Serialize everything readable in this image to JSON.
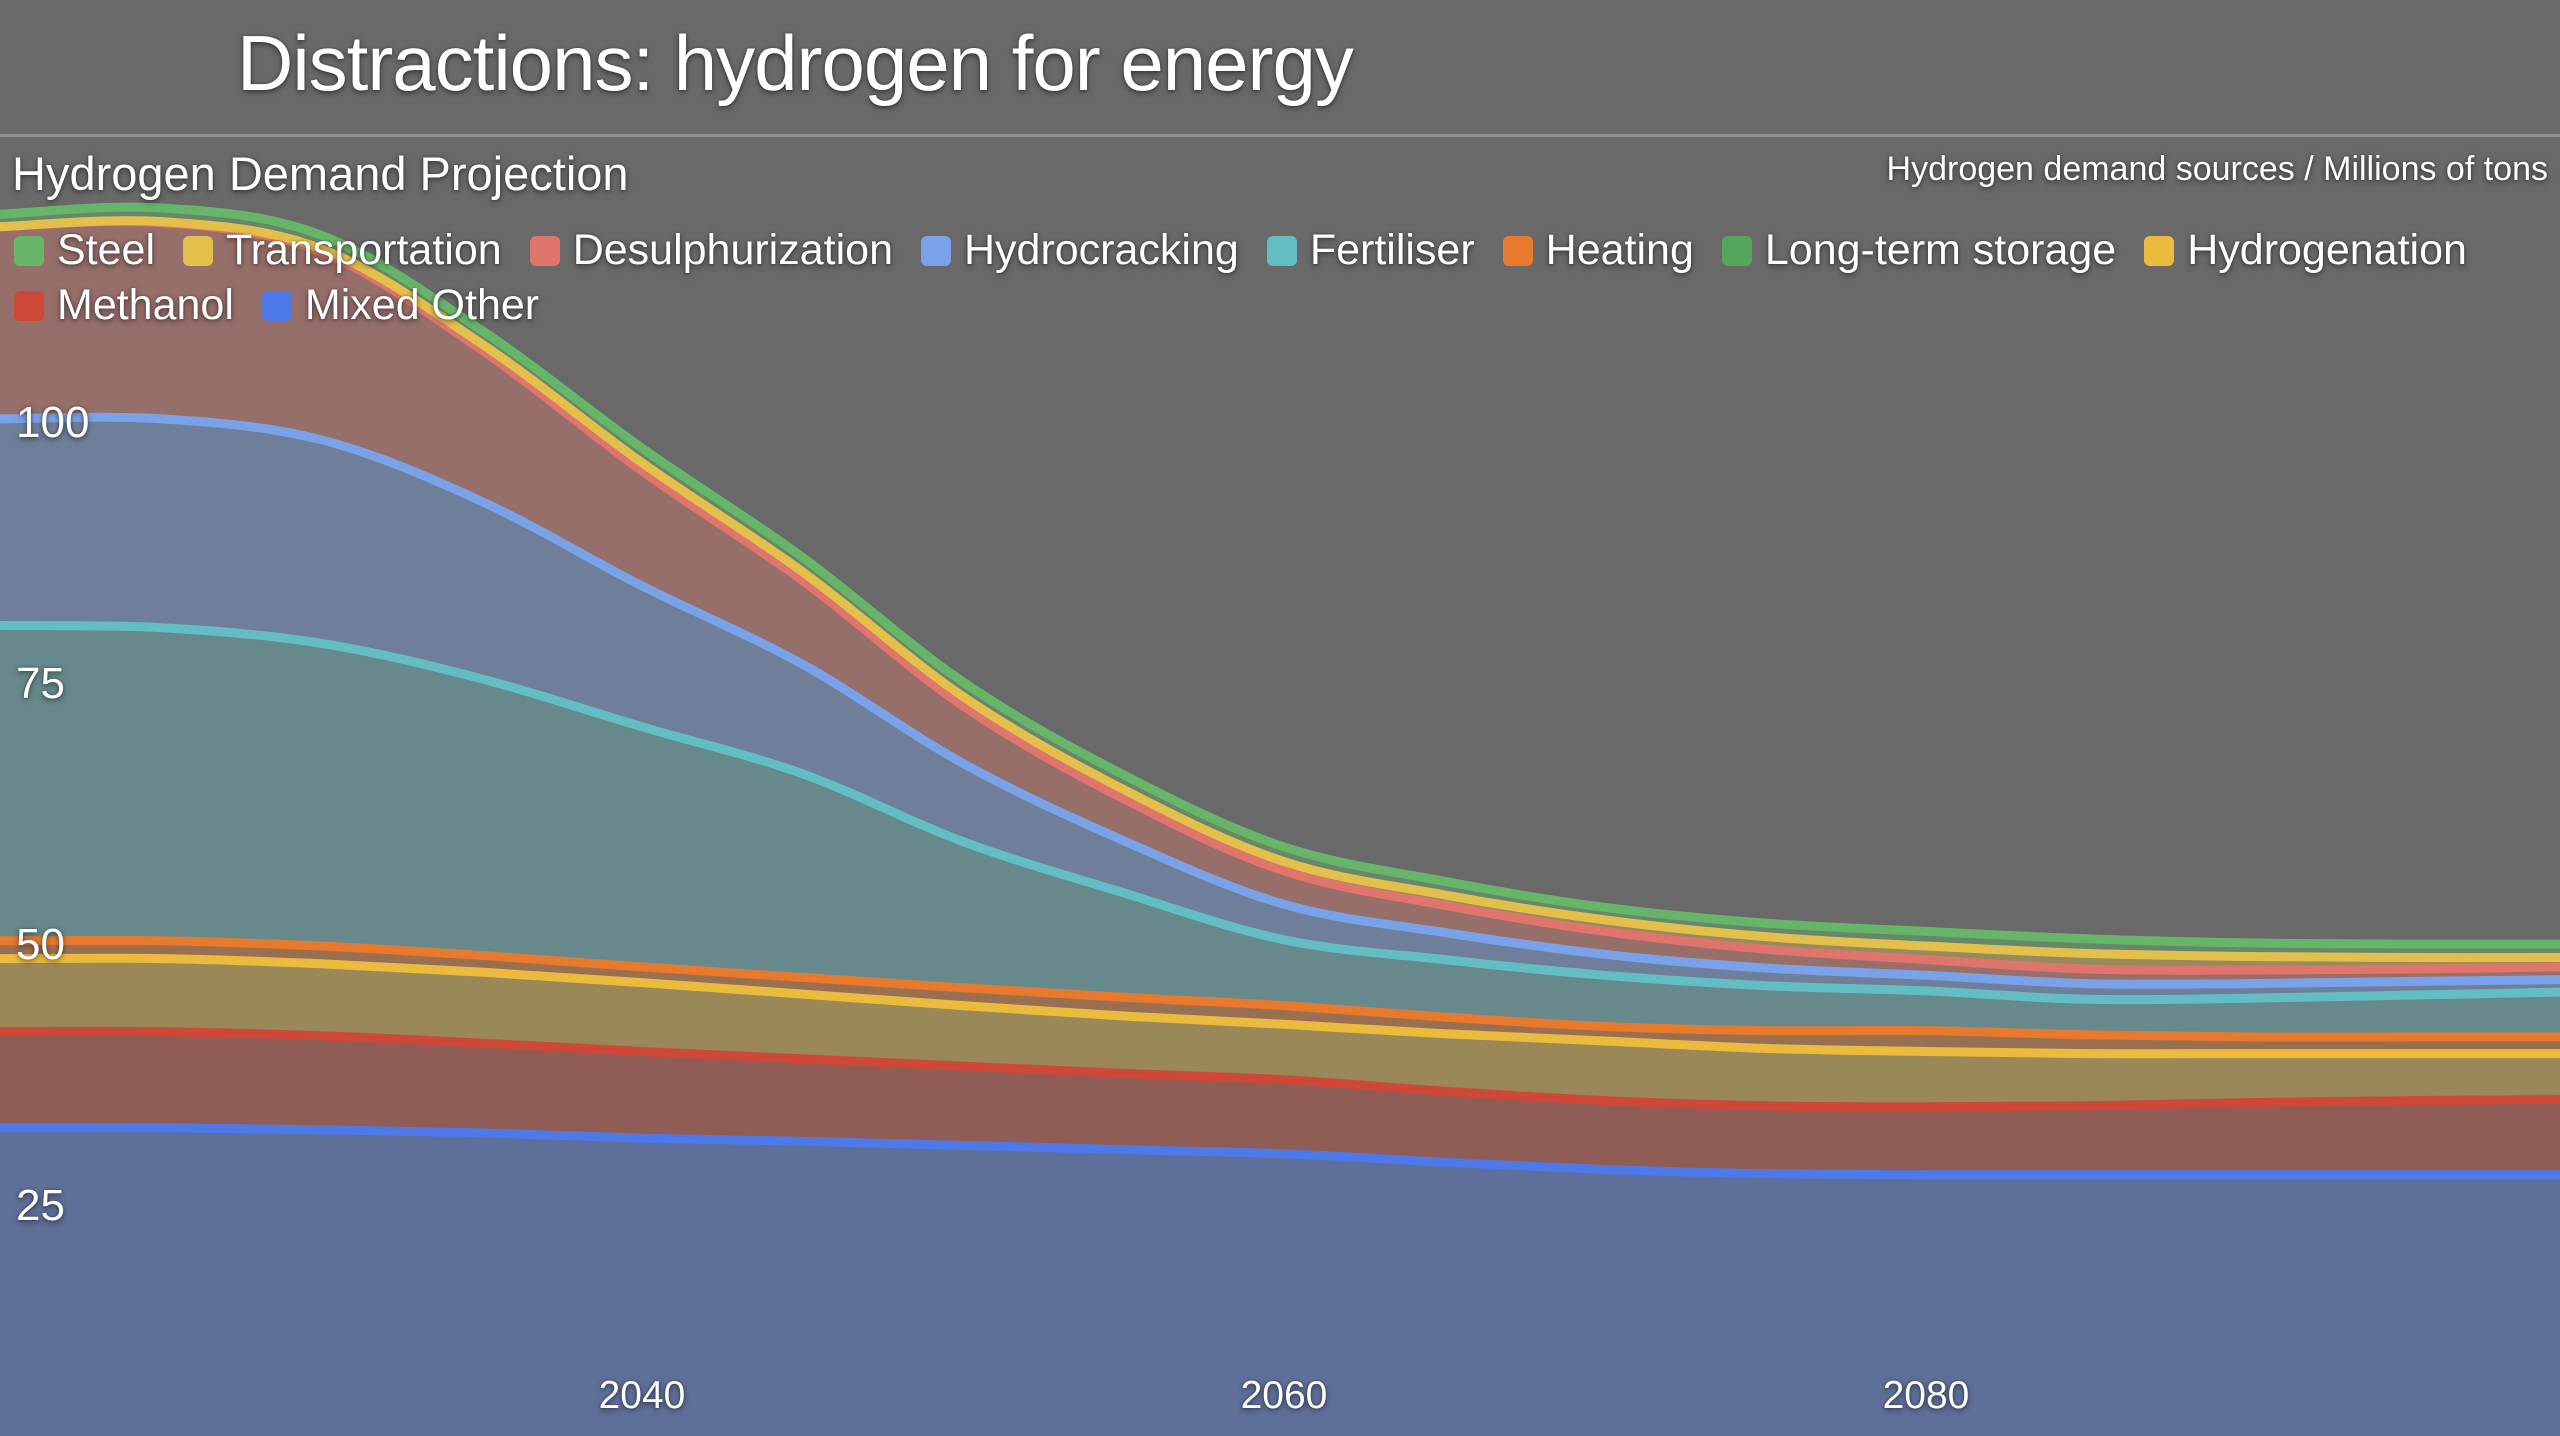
{
  "header": {
    "title": "Distractions: hydrogen for energy"
  },
  "chart_data": {
    "type": "area",
    "stacked": true,
    "title": "Hydrogen Demand Projection",
    "unit_label": "Hydrogen demand sources / Millions of tons",
    "background_color": "#696969",
    "grid": false,
    "legend_position": "top",
    "x": [
      2020,
      2025,
      2030,
      2035,
      2040,
      2045,
      2050,
      2055,
      2060,
      2065,
      2070,
      2075,
      2080,
      2085,
      2090,
      2095,
      2100
    ],
    "x_ticks": [
      2040,
      2060,
      2080
    ],
    "y_ticks": [
      100,
      75,
      50,
      25
    ],
    "x_range": [
      2020,
      2100
    ],
    "y_range_px_mapping_note": "",
    "ylim": [
      0,
      125
    ],
    "legend_order": [
      "Steel",
      "Transportation",
      "Desulphurization",
      "Hydrocracking",
      "Fertiliser",
      "Heating",
      "Long-term storage",
      "Hydrogenation",
      "Methanol",
      "Mixed Other"
    ],
    "series": [
      {
        "name": "Mixed Other",
        "color": "#4d7ae8",
        "values": [
          32.5,
          32.5,
          32.3,
          32.0,
          31.5,
          31.2,
          30.8,
          30.4,
          30.0,
          29.2,
          28.5,
          28.1,
          28.0,
          28.0,
          28.0,
          28.0,
          28.0
        ]
      },
      {
        "name": "Methanol",
        "color": "#cf4837",
        "values": [
          9.2,
          9.2,
          9.0,
          8.6,
          8.3,
          7.9,
          7.6,
          7.3,
          7.1,
          6.8,
          6.6,
          6.5,
          6.5,
          6.6,
          6.9,
          7.1,
          7.2
        ]
      },
      {
        "name": "Hydrogenation",
        "color": "#eabb3d",
        "values": [
          7.0,
          7.0,
          6.9,
          6.8,
          6.6,
          6.2,
          5.8,
          5.5,
          5.3,
          5.5,
          5.7,
          5.5,
          5.3,
          5.0,
          4.7,
          4.5,
          4.4
        ]
      },
      {
        "name": "Long-term storage",
        "color": "#55a65a",
        "values": [
          0,
          0,
          0,
          0,
          0,
          0,
          0,
          0,
          0,
          0,
          0,
          0,
          0,
          0,
          0,
          0,
          0
        ]
      },
      {
        "name": "Heating",
        "color": "#e87a2d",
        "values": [
          1.7,
          1.7,
          1.7,
          1.6,
          1.5,
          1.6,
          1.7,
          1.8,
          1.8,
          1.6,
          1.4,
          1.7,
          2.0,
          1.8,
          1.6,
          1.6,
          1.6
        ]
      },
      {
        "name": "Fertiliser",
        "color": "#63bec3",
        "values": [
          30.2,
          30.0,
          29.0,
          26.5,
          23.0,
          19.5,
          14.0,
          10.0,
          6.3,
          5.5,
          4.9,
          4.3,
          3.8,
          3.4,
          3.7,
          4.0,
          4.3
        ]
      },
      {
        "name": "Hydrocracking",
        "color": "#7aa2e8",
        "values": [
          19.8,
          20.0,
          19.5,
          17.0,
          13.5,
          10.5,
          7.5,
          5.0,
          3.4,
          2.6,
          2.0,
          1.7,
          1.5,
          1.5,
          1.4,
          1.3,
          1.2
        ]
      },
      {
        "name": "Desulphurization",
        "color": "#e0756d",
        "values": [
          18.4,
          18.8,
          18.0,
          14.5,
          11.0,
          8.0,
          5.5,
          4.0,
          3.2,
          2.6,
          2.2,
          1.8,
          1.5,
          1.4,
          1.3,
          1.2,
          1.2
        ]
      },
      {
        "name": "Transportation",
        "color": "#e3c04b",
        "values": [
          0.0,
          0.1,
          0.3,
          0.6,
          0.8,
          0.85,
          0.9,
          0.9,
          0.9,
          1.0,
          1.1,
          1.2,
          1.3,
          1.5,
          1.3,
          1.1,
          0.9
        ]
      },
      {
        "name": "Steel",
        "color": "#67b568",
        "values": [
          1.2,
          1.3,
          1.3,
          1.3,
          1.4,
          1.4,
          1.4,
          1.4,
          1.4,
          1.3,
          1.2,
          1.3,
          1.4,
          1.4,
          1.3,
          1.3,
          1.3
        ]
      }
    ]
  }
}
